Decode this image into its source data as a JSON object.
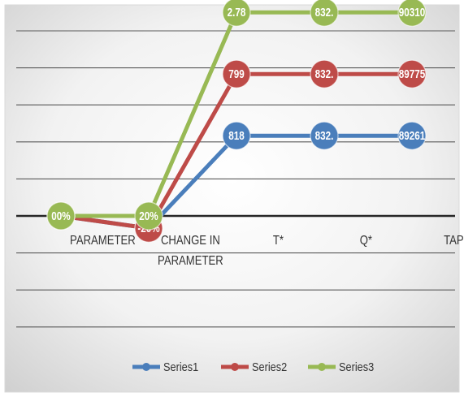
{
  "chart_data": {
    "type": "line",
    "categories": [
      "PARAMETER",
      "CHANGE IN PARAMETER",
      "T*",
      "Q*",
      "TAP"
    ],
    "category_lines": [
      [
        "PARAMETER"
      ],
      [
        "CHANGE IN",
        "PARAMETER"
      ],
      [
        "T*"
      ],
      [
        "Q*"
      ],
      [
        "TAP"
      ]
    ],
    "series": [
      {
        "name": "Series1",
        "color": "#4a7ebb",
        "values": [
          0,
          -0.2,
          1.3,
          1.3,
          1.3
        ],
        "labels": [
          "",
          "",
          "818",
          "832.",
          "89261"
        ]
      },
      {
        "name": "Series2",
        "color": "#be4b48",
        "values": [
          0,
          -0.2,
          2.3,
          2.3,
          2.3
        ],
        "labels": [
          "",
          "-20%",
          "799",
          "832.",
          "89775"
        ]
      },
      {
        "name": "Series3",
        "color": "#98b954",
        "values": [
          0,
          0,
          3.3,
          3.3,
          3.3
        ],
        "labels": [
          "00%",
          "20%",
          "2.78",
          "832.",
          "90310"
        ]
      }
    ],
    "ylim": [
      -0.4,
      3.5
    ],
    "grid": true,
    "legend": "bottom"
  }
}
